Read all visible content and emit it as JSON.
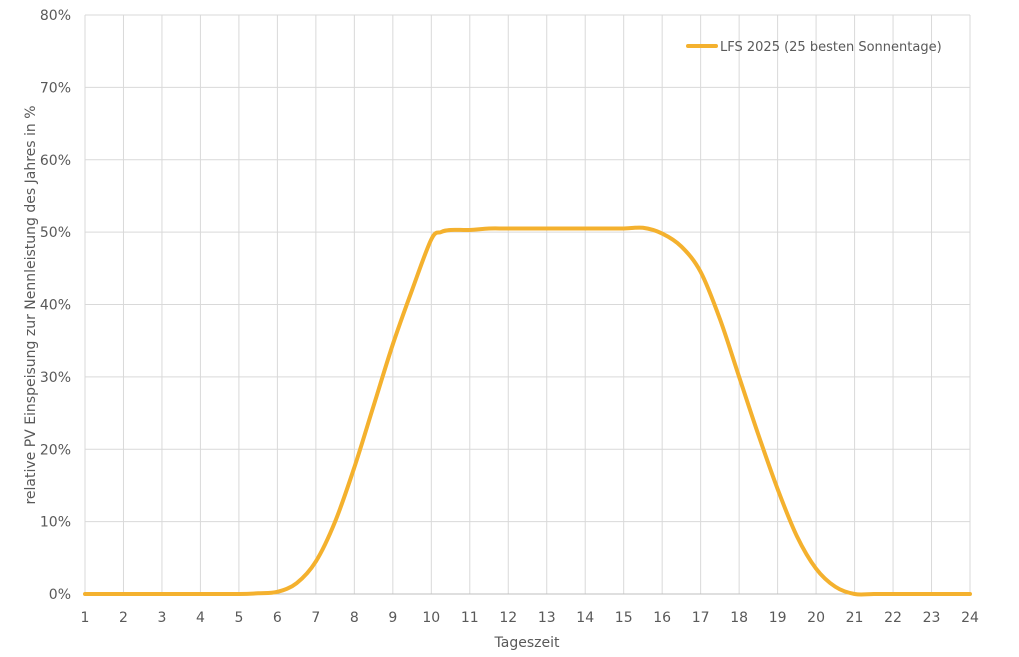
{
  "chart_data": {
    "type": "line",
    "xlabel": "Tageszeit",
    "ylabel": "relative PV Einspeisung zur Nennleistung des Jahres in %",
    "xlim": [
      1,
      24
    ],
    "ylim": [
      0,
      80
    ],
    "x_ticks": [
      "1",
      "2",
      "3",
      "4",
      "5",
      "6",
      "7",
      "8",
      "9",
      "10",
      "11",
      "12",
      "13",
      "14",
      "15",
      "16",
      "17",
      "18",
      "19",
      "20",
      "21",
      "22",
      "23",
      "24"
    ],
    "y_ticks": [
      "0%",
      "10%",
      "20%",
      "30%",
      "40%",
      "50%",
      "60%",
      "70%",
      "80%"
    ],
    "grid": true,
    "legend_position": "top-right",
    "series": [
      {
        "name": "LFS 2025 (25 besten Sonnentage)",
        "color": "#F4B12E",
        "x": [
          1,
          2,
          3,
          4,
          5,
          5.5,
          6,
          6.5,
          7,
          7.5,
          8,
          8.5,
          9,
          9.5,
          10,
          10.25,
          10.5,
          11,
          11.5,
          12,
          13,
          14,
          15,
          15.5,
          16,
          16.5,
          17,
          17.5,
          18,
          18.5,
          19,
          19.5,
          20,
          20.5,
          21,
          21.5,
          22,
          23,
          24
        ],
        "y": [
          0,
          0,
          0,
          0,
          0,
          0.1,
          0.3,
          1.5,
          4.5,
          10,
          17.5,
          26,
          34.5,
          42,
          49,
          50,
          50.3,
          50.3,
          50.5,
          50.5,
          50.5,
          50.5,
          50.5,
          50.6,
          49.8,
          48,
          44.5,
          38,
          30,
          22,
          14.5,
          8,
          3.5,
          1,
          0,
          0,
          0,
          0,
          0
        ]
      }
    ]
  }
}
